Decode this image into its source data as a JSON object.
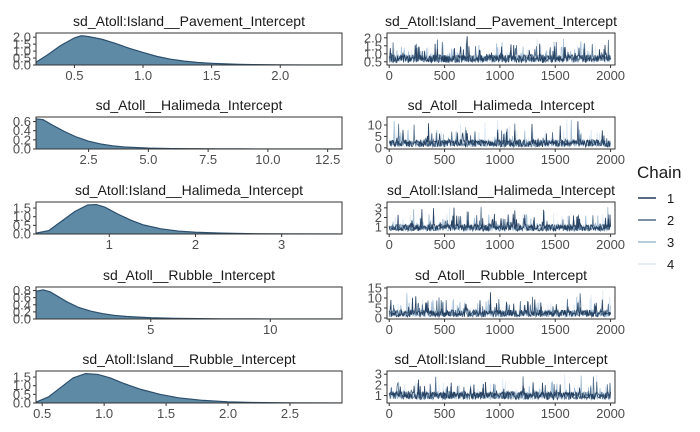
{
  "chart_data": [
    {
      "type": "area",
      "title": "sd_Atoll:Island__Pavement_Intercept",
      "xlim": [
        0.22,
        2.45
      ],
      "ylim": [
        0,
        2.3
      ],
      "xticks": [
        0.5,
        1.0,
        1.5,
        2.0
      ],
      "xtick_labels": [
        "0.5",
        "1.0",
        "1.5",
        "2.0"
      ],
      "yticks": [
        0,
        0.5,
        1.0,
        1.5,
        2.0
      ],
      "ytick_labels": [
        "0.0",
        "0.5",
        "1.0",
        "1.5",
        "2.0"
      ],
      "density": {
        "x": [
          0.22,
          0.3,
          0.4,
          0.5,
          0.55,
          0.6,
          0.7,
          0.8,
          0.9,
          1.0,
          1.1,
          1.2,
          1.3,
          1.4,
          1.5,
          1.6,
          1.7,
          1.8,
          2.0,
          2.2,
          2.45
        ],
        "y": [
          0.2,
          0.7,
          1.4,
          1.95,
          2.1,
          2.05,
          1.85,
          1.55,
          1.2,
          0.9,
          0.62,
          0.42,
          0.28,
          0.18,
          0.12,
          0.08,
          0.05,
          0.03,
          0.01,
          0.005,
          0.0
        ]
      }
    },
    {
      "type": "line",
      "title": "sd_Atoll:Island__Pavement_Intercept",
      "xlim": [
        -20,
        2040
      ],
      "ylim": [
        0.3,
        2.3
      ],
      "xticks": [
        0,
        500,
        1000,
        1500,
        2000
      ],
      "xtick_labels": [
        "0",
        "500",
        "1000",
        "1500",
        "2000"
      ],
      "yticks": [
        0.5,
        1.0,
        1.5,
        2.0
      ],
      "ytick_labels": [
        "0.5",
        "1.0",
        "1.5",
        "2.0"
      ],
      "trace": {
        "iterations": 2000,
        "center": 0.7,
        "spread": 0.25,
        "spike_max": 2.2
      }
    },
    {
      "type": "area",
      "title": "sd_Atoll__Halimeda_Intercept",
      "xlim": [
        0.3,
        13.1
      ],
      "ylim": [
        0,
        0.7
      ],
      "xticks": [
        2.5,
        5.0,
        7.5,
        10.0,
        12.5
      ],
      "xtick_labels": [
        "2.5",
        "5.0",
        "7.5",
        "10.0",
        "12.5"
      ],
      "yticks": [
        0,
        0.2,
        0.4,
        0.6
      ],
      "ytick_labels": [
        "0.0",
        "0.2",
        "0.4",
        "0.6"
      ],
      "density": {
        "x": [
          0.3,
          0.6,
          1.0,
          1.5,
          2.0,
          2.5,
          3.0,
          3.5,
          4.0,
          5.0,
          6.0,
          7.0,
          8.0,
          9.0,
          10.0,
          13.1
        ],
        "y": [
          0.66,
          0.64,
          0.52,
          0.38,
          0.26,
          0.17,
          0.11,
          0.07,
          0.045,
          0.02,
          0.01,
          0.005,
          0.003,
          0.002,
          0.001,
          0.0
        ]
      }
    },
    {
      "type": "line",
      "title": "sd_Atoll__Halimeda_Intercept",
      "xlim": [
        -20,
        2040
      ],
      "ylim": [
        -0.5,
        13.5
      ],
      "xticks": [
        0,
        500,
        1000,
        1500,
        2000
      ],
      "xtick_labels": [
        "0",
        "500",
        "1000",
        "1500",
        "2000"
      ],
      "yticks": [
        0,
        5,
        10
      ],
      "ytick_labels": [
        "0",
        "5",
        "10"
      ],
      "trace": {
        "iterations": 2000,
        "center": 2.0,
        "spread": 1.6,
        "spike_max": 12.5
      }
    },
    {
      "type": "area",
      "title": "sd_Atoll:Island__Halimeda_Intercept",
      "xlim": [
        0.15,
        3.7
      ],
      "ylim": [
        0,
        1.85
      ],
      "xticks": [
        1,
        2,
        3
      ],
      "xtick_labels": [
        "1",
        "2",
        "3"
      ],
      "yticks": [
        0,
        0.5,
        1.0,
        1.5
      ],
      "ytick_labels": [
        "0.0",
        "0.5",
        "1.0",
        "1.5"
      ],
      "density": {
        "x": [
          0.15,
          0.3,
          0.45,
          0.6,
          0.75,
          0.85,
          0.95,
          1.1,
          1.25,
          1.4,
          1.6,
          1.8,
          2.0,
          2.3,
          2.6,
          3.0,
          3.7
        ],
        "y": [
          0.05,
          0.2,
          0.75,
          1.3,
          1.68,
          1.7,
          1.55,
          1.15,
          0.8,
          0.52,
          0.3,
          0.17,
          0.1,
          0.05,
          0.02,
          0.008,
          0.0
        ]
      }
    },
    {
      "type": "line",
      "title": "sd_Atoll:Island__Halimeda_Intercept",
      "xlim": [
        -20,
        2040
      ],
      "ylim": [
        0.3,
        3.6
      ],
      "xticks": [
        0,
        500,
        1000,
        1500,
        2000
      ],
      "xtick_labels": [
        "0",
        "500",
        "1000",
        "1500",
        "2000"
      ],
      "yticks": [
        1,
        2,
        3
      ],
      "ytick_labels": [
        "1",
        "2",
        "3"
      ],
      "trace": {
        "iterations": 2000,
        "center": 0.95,
        "spread": 0.35,
        "spike_max": 3.3
      }
    },
    {
      "type": "area",
      "title": "sd_Atoll__Rubble_Intercept",
      "xlim": [
        0.2,
        13.0
      ],
      "ylim": [
        0,
        0.9
      ],
      "xticks": [
        5,
        10
      ],
      "xtick_labels": [
        "5",
        "10"
      ],
      "yticks": [
        0,
        0.2,
        0.4,
        0.6,
        0.8
      ],
      "ytick_labels": [
        "0.0",
        "0.2",
        "0.4",
        "0.6",
        "0.8"
      ],
      "density": {
        "x": [
          0.2,
          0.5,
          0.8,
          1.0,
          1.5,
          2.0,
          2.5,
          3.0,
          3.5,
          4.0,
          5.0,
          6.0,
          7.0,
          8.0,
          10.0,
          13.0
        ],
        "y": [
          0.78,
          0.82,
          0.76,
          0.68,
          0.48,
          0.32,
          0.22,
          0.15,
          0.1,
          0.07,
          0.035,
          0.02,
          0.01,
          0.006,
          0.002,
          0.0
        ]
      }
    },
    {
      "type": "line",
      "title": "sd_Atoll__Rubble_Intercept",
      "xlim": [
        -20,
        2040
      ],
      "ylim": [
        -0.5,
        15.5
      ],
      "xticks": [
        0,
        500,
        1000,
        1500,
        2000
      ],
      "xtick_labels": [
        "0",
        "500",
        "1000",
        "1500",
        "2000"
      ],
      "yticks": [
        0,
        5,
        10,
        15
      ],
      "ytick_labels": [
        "0",
        "5",
        "10",
        "15"
      ],
      "trace": {
        "iterations": 2000,
        "center": 2.3,
        "spread": 1.8,
        "spike_max": 14
      }
    },
    {
      "type": "area",
      "title": "sd_Atoll:Island__Rubble_Intercept",
      "xlim": [
        0.45,
        2.92
      ],
      "ylim": [
        0,
        1.85
      ],
      "xticks": [
        0.5,
        1.0,
        1.5,
        2.0,
        2.5
      ],
      "xtick_labels": [
        "0.5",
        "1.0",
        "1.5",
        "2.0",
        "2.5"
      ],
      "yticks": [
        0,
        0.5,
        1.0,
        1.5
      ],
      "ytick_labels": [
        "0.0",
        "0.5",
        "1.0",
        "1.5"
      ],
      "density": {
        "x": [
          0.45,
          0.55,
          0.65,
          0.75,
          0.85,
          0.95,
          1.05,
          1.15,
          1.3,
          1.45,
          1.6,
          1.8,
          2.0,
          2.2,
          2.5,
          2.92
        ],
        "y": [
          0.05,
          0.35,
          0.9,
          1.45,
          1.7,
          1.65,
          1.45,
          1.15,
          0.78,
          0.5,
          0.3,
          0.15,
          0.07,
          0.03,
          0.01,
          0.0
        ]
      }
    },
    {
      "type": "line",
      "title": "sd_Atoll:Island__Rubble_Intercept",
      "xlim": [
        -20,
        2040
      ],
      "ylim": [
        0.3,
        3.3
      ],
      "xticks": [
        0,
        500,
        1000,
        1500,
        2000
      ],
      "xtick_labels": [
        "0",
        "500",
        "1000",
        "1500",
        "2000"
      ],
      "yticks": [
        1,
        2,
        3
      ],
      "ytick_labels": [
        "1",
        "2",
        "3"
      ],
      "trace": {
        "iterations": 2000,
        "center": 1.0,
        "spread": 0.38,
        "spike_max": 3.0
      }
    }
  ],
  "legend": {
    "title": "Chain",
    "placement": "right",
    "items": [
      {
        "label": "1",
        "color": "#1f3a5c"
      },
      {
        "label": "2",
        "color": "#4f6d8a"
      },
      {
        "label": "3",
        "color": "#9fbcd4"
      },
      {
        "label": "4",
        "color": "#dbe8f3"
      }
    ]
  },
  "colors": {
    "density_fill": "#5f8aa6",
    "density_line": "#2b4f6c",
    "panel_border": "#333333",
    "tick_text": "#4d4d4d"
  }
}
